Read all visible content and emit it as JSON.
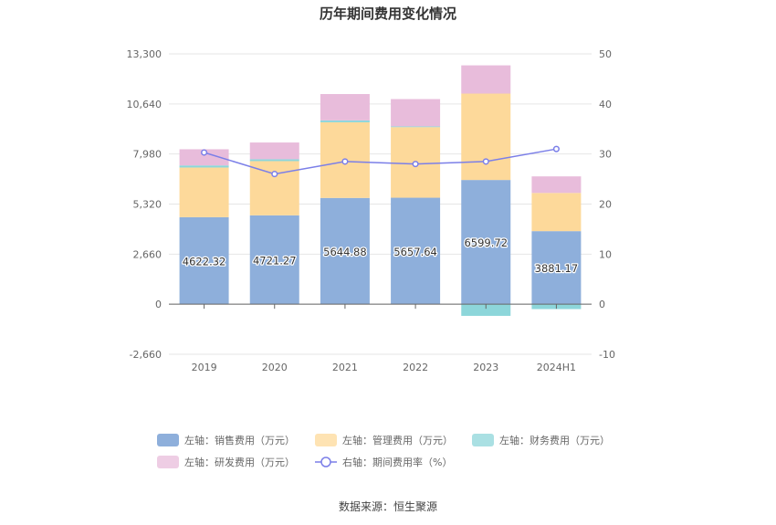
{
  "title": "历年期间费用变化情况",
  "source": "数据来源：恒生聚源",
  "chart_data": {
    "type": "bar",
    "stacked": true,
    "categories": [
      "2019",
      "2020",
      "2021",
      "2022",
      "2023",
      "2024H1"
    ],
    "left_axis": {
      "ticks": [
        "13,300",
        "10,640",
        "7,980",
        "5,320",
        "2,660",
        "0",
        "-2,660"
      ],
      "range": [
        -2660,
        13300
      ]
    },
    "right_axis": {
      "ticks": [
        "50",
        "40",
        "30",
        "20",
        "10",
        "0",
        "-10"
      ],
      "range": [
        -10,
        50
      ]
    },
    "series": [
      {
        "name": "左轴：销售费用（万元）",
        "axis": "left",
        "kind": "bar",
        "color": "#8eafdb",
        "values": [
          4622.32,
          4721.27,
          5644.88,
          5657.64,
          6599.72,
          3881.17
        ],
        "labels": [
          "4622.32",
          "4721.27",
          "5644.88",
          "5657.64",
          "6599.72",
          "3881.17"
        ]
      },
      {
        "name": "左轴：管理费用（万元）",
        "axis": "left",
        "kind": "bar",
        "color": "#fdd99a",
        "values": [
          2640,
          2880,
          4020,
          3750,
          4590,
          2030
        ]
      },
      {
        "name": "左轴：财务费用（万元）",
        "axis": "left",
        "kind": "bar",
        "color": "#8dd6da",
        "values": [
          110,
          100,
          100,
          40,
          -620,
          -260
        ]
      },
      {
        "name": "左轴：研发费用（万元）",
        "axis": "left",
        "kind": "bar",
        "color": "#e8bcdb",
        "values": [
          860,
          890,
          1400,
          1450,
          1500,
          880
        ]
      },
      {
        "name": "右轴：期间费用率（%）",
        "axis": "right",
        "kind": "line",
        "color": "#7b7fe8",
        "values": [
          30.3,
          26.0,
          28.5,
          28.0,
          28.5,
          31.0
        ]
      }
    ],
    "legend_position": "bottom",
    "grid": true
  }
}
